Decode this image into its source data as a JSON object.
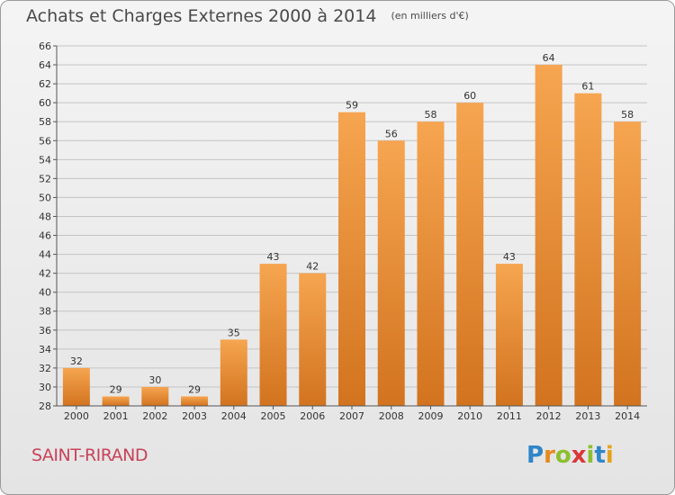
{
  "header": {
    "title": "Achats et Charges Externes 2000 à 2014",
    "subtitle": "(en milliers d'€)"
  },
  "footer": {
    "commune": "SAINT-RIRAND",
    "logo_letters": [
      "P",
      "r",
      "o",
      "x",
      "i",
      "t",
      "i"
    ],
    "logo_colors": [
      "#2f86c8",
      "#e58a1f",
      "#8cbf2f",
      "#d9373a",
      "#8cbf2f",
      "#2f86c8",
      "#e5a21f"
    ]
  },
  "colors": {
    "bar_light": "#f6a550",
    "bar_dark": "#d2731f",
    "grid": "#c4c4c4",
    "text": "#333333"
  },
  "chart_data": {
    "type": "bar",
    "categories": [
      "2000",
      "2001",
      "2002",
      "2003",
      "2004",
      "2005",
      "2006",
      "2007",
      "2008",
      "2009",
      "2010",
      "2011",
      "2012",
      "2013",
      "2014"
    ],
    "values": [
      32,
      29,
      30,
      29,
      35,
      43,
      42,
      59,
      56,
      58,
      60,
      43,
      64,
      61,
      58
    ],
    "title": "Achats et Charges Externes 2000 à 2014",
    "subtitle": "(en milliers d'€)",
    "xlabel": "",
    "ylabel": "",
    "ylim": [
      28,
      66
    ],
    "yticks": [
      28,
      30,
      32,
      34,
      36,
      38,
      40,
      42,
      44,
      46,
      48,
      50,
      52,
      54,
      56,
      58,
      60,
      62,
      64,
      66
    ],
    "grid": true,
    "legend": "none"
  }
}
